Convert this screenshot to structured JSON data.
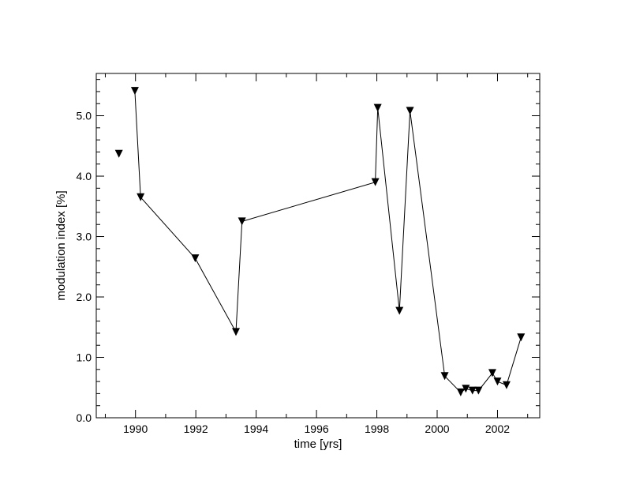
{
  "chart_data": {
    "type": "line",
    "title": "",
    "xlabel": "time [yrs]",
    "ylabel": "modulation index [%]",
    "xlim": [
      1988.7,
      2003.4
    ],
    "ylim": [
      0.0,
      5.7
    ],
    "x_ticks": [
      1990,
      1992,
      1994,
      1996,
      1998,
      2000,
      2002
    ],
    "y_ticks": [
      0.0,
      1.0,
      2.0,
      3.0,
      4.0,
      5.0
    ],
    "y_tick_labels": [
      "0.0",
      "1.0",
      "2.0",
      "3.0",
      "4.0",
      "5.0"
    ],
    "grid": false,
    "marker": "downward-triangle",
    "series": [
      {
        "points": [
          {
            "x": 1989.45,
            "y": 4.37,
            "connected": false
          },
          {
            "x": 1989.98,
            "y": 5.41,
            "connected": true
          },
          {
            "x": 1990.17,
            "y": 3.65,
            "connected": true
          },
          {
            "x": 1991.98,
            "y": 2.64,
            "connected": true
          },
          {
            "x": 1993.33,
            "y": 1.42,
            "connected": true
          },
          {
            "x": 1993.53,
            "y": 3.25,
            "connected": true
          },
          {
            "x": 1997.95,
            "y": 3.9,
            "connected": true
          },
          {
            "x": 1998.03,
            "y": 5.13,
            "connected": true
          },
          {
            "x": 1998.75,
            "y": 1.77,
            "connected": true
          },
          {
            "x": 1999.1,
            "y": 5.08,
            "connected": true
          },
          {
            "x": 2000.25,
            "y": 0.69,
            "connected": true
          },
          {
            "x": 2000.78,
            "y": 0.42,
            "connected": true
          },
          {
            "x": 2000.95,
            "y": 0.48,
            "connected": true
          },
          {
            "x": 2001.17,
            "y": 0.45,
            "connected": true
          },
          {
            "x": 2001.37,
            "y": 0.45,
            "connected": true
          },
          {
            "x": 2001.83,
            "y": 0.74,
            "connected": true
          },
          {
            "x": 2002.0,
            "y": 0.6,
            "connected": true
          },
          {
            "x": 2002.3,
            "y": 0.54,
            "connected": true
          },
          {
            "x": 2002.78,
            "y": 1.33,
            "connected": true
          }
        ]
      }
    ]
  }
}
